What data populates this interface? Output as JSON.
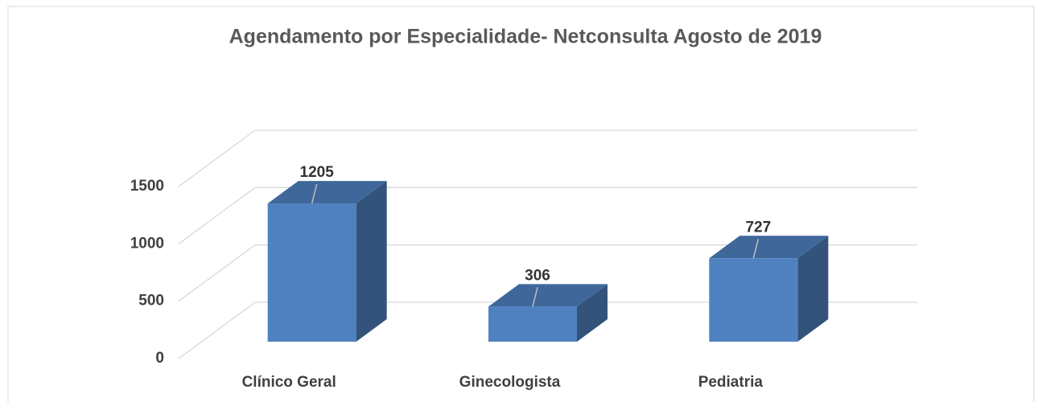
{
  "chart_data": {
    "type": "bar3d",
    "title": "Agendamento por Especialidade- Netconsulta Agosto de 2019",
    "categories": [
      "Clínico Geral",
      "Ginecologista",
      "Pediatria"
    ],
    "values": [
      1205,
      306,
      727
    ],
    "color": "#4f81c0",
    "ylim": [
      0,
      1500
    ],
    "yticks": [
      0,
      500,
      1000,
      1500
    ],
    "grid": true
  }
}
